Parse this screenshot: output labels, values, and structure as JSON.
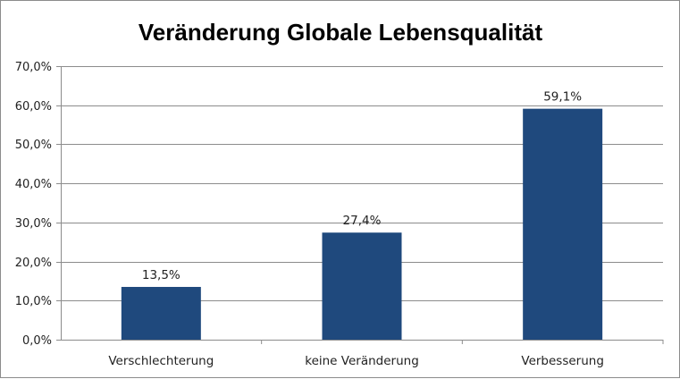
{
  "chart_data": {
    "type": "bar",
    "title": "Veränderung Globale Lebensqualität",
    "categories": [
      "Verschlechterung",
      "keine Veränderung",
      "Verbesserung"
    ],
    "values": [
      13.5,
      27.4,
      59.1
    ],
    "data_labels": [
      "13,5%",
      "27,4%",
      "59,1%"
    ],
    "ylim": [
      0,
      70
    ],
    "yticks": [
      0,
      10,
      20,
      30,
      40,
      50,
      60,
      70
    ],
    "ytick_labels": [
      "0,0%",
      "10,0%",
      "20,0%",
      "30,0%",
      "40,0%",
      "50,0%",
      "60,0%",
      "70,0%"
    ],
    "grid": true,
    "legend": "none",
    "bar_color": "#1f497d",
    "grid_color": "#8c8c8c"
  }
}
